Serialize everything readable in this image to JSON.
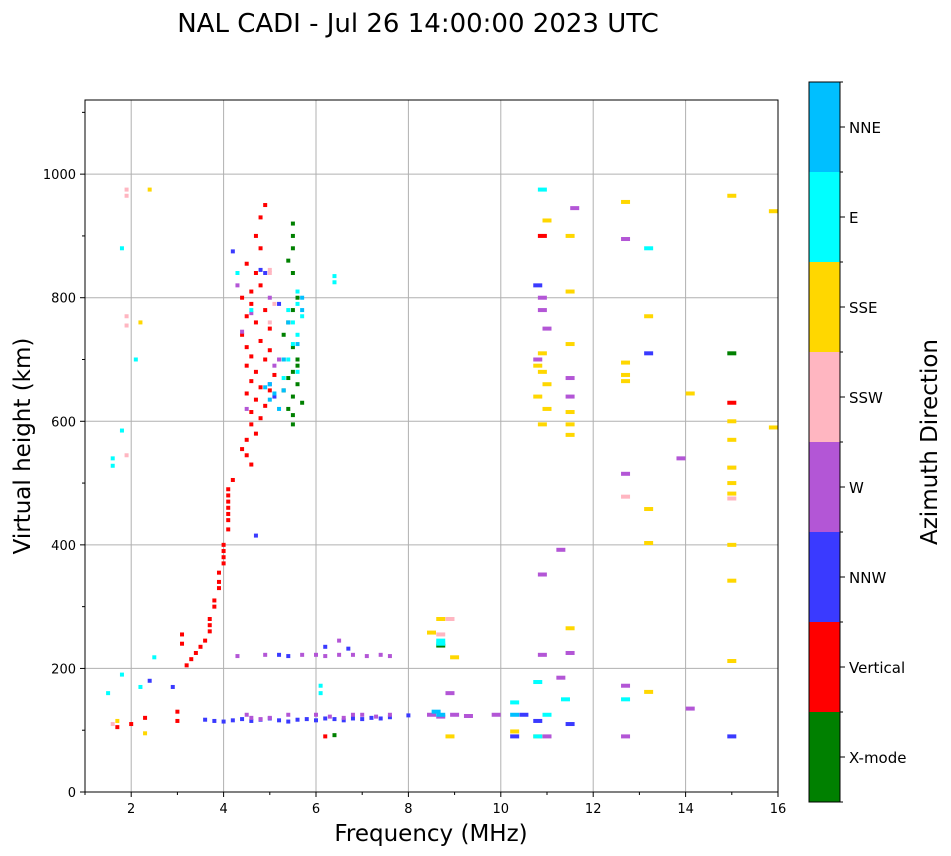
{
  "chart_data": {
    "type": "scatter",
    "title": "NAL CADI - Jul 26 14:00:00 2023 UTC",
    "xlabel": "Frequency (MHz)",
    "ylabel": "Virtual height (km)",
    "xlim": [
      1,
      16
    ],
    "ylim": [
      0,
      1120
    ],
    "xticks": [
      2,
      4,
      6,
      8,
      10,
      12,
      14,
      16
    ],
    "xtick_labels": [
      "2",
      "4",
      "6",
      "8",
      "10",
      "12",
      "14",
      "16"
    ],
    "yticks": [
      0,
      200,
      400,
      600,
      800,
      1000
    ],
    "ytick_labels": [
      "0",
      "200",
      "400",
      "600",
      "800",
      "1000"
    ],
    "grid": true,
    "colorbar": {
      "label": "Azimuth Direction",
      "categories": [
        "X-mode",
        "Vertical",
        "NNW",
        "W",
        "SSW",
        "SSE",
        "E",
        "NNE"
      ],
      "colors": [
        "#008000",
        "#ff0000",
        "#3a3aff",
        "#b356d6",
        "#ffb6c1",
        "#ffd700",
        "#00ffff",
        "#00bfff"
      ]
    },
    "series": [
      {
        "name": "X-mode",
        "points": [
          [
            5.5,
            920
          ],
          [
            5.5,
            900
          ],
          [
            5.5,
            880
          ],
          [
            5.4,
            860
          ],
          [
            5.5,
            840
          ],
          [
            5.6,
            800
          ],
          [
            5.5,
            780
          ],
          [
            5.4,
            760
          ],
          [
            5.3,
            740
          ],
          [
            5.5,
            720
          ],
          [
            5.6,
            700
          ],
          [
            5.5,
            680
          ],
          [
            5.4,
            670
          ],
          [
            5.6,
            660
          ],
          [
            5.3,
            650
          ],
          [
            5.5,
            640
          ],
          [
            5.7,
            630
          ],
          [
            5.4,
            620
          ],
          [
            5.5,
            610
          ],
          [
            5.5,
            595
          ],
          [
            5.6,
            690
          ],
          [
            5.3,
            700
          ],
          [
            6.4,
            92
          ],
          [
            15.0,
            710
          ],
          [
            8.7,
            237
          ]
        ]
      },
      {
        "name": "Vertical",
        "points": [
          [
            4.9,
            950
          ],
          [
            4.8,
            930
          ],
          [
            4.7,
            900
          ],
          [
            4.8,
            880
          ],
          [
            4.5,
            855
          ],
          [
            4.7,
            840
          ],
          [
            4.8,
            820
          ],
          [
            4.6,
            810
          ],
          [
            4.4,
            800
          ],
          [
            4.6,
            790
          ],
          [
            4.9,
            780
          ],
          [
            4.5,
            770
          ],
          [
            4.7,
            760
          ],
          [
            5.0,
            750
          ],
          [
            4.4,
            740
          ],
          [
            4.8,
            730
          ],
          [
            4.5,
            720
          ],
          [
            5.0,
            715
          ],
          [
            4.6,
            705
          ],
          [
            4.9,
            700
          ],
          [
            4.5,
            690
          ],
          [
            4.7,
            680
          ],
          [
            5.1,
            675
          ],
          [
            4.6,
            665
          ],
          [
            4.8,
            655
          ],
          [
            5.0,
            650
          ],
          [
            4.5,
            645
          ],
          [
            4.7,
            635
          ],
          [
            4.9,
            625
          ],
          [
            4.6,
            615
          ],
          [
            4.8,
            605
          ],
          [
            4.6,
            595
          ],
          [
            4.7,
            580
          ],
          [
            4.5,
            570
          ],
          [
            4.4,
            555
          ],
          [
            4.5,
            545
          ],
          [
            4.6,
            530
          ],
          [
            4.2,
            505
          ],
          [
            4.1,
            490
          ],
          [
            4.1,
            480
          ],
          [
            4.1,
            470
          ],
          [
            4.1,
            460
          ],
          [
            4.1,
            450
          ],
          [
            4.1,
            440
          ],
          [
            4.1,
            425
          ],
          [
            4.0,
            400
          ],
          [
            4.0,
            390
          ],
          [
            4.0,
            380
          ],
          [
            4.0,
            370
          ],
          [
            3.9,
            355
          ],
          [
            3.9,
            340
          ],
          [
            3.9,
            330
          ],
          [
            3.8,
            310
          ],
          [
            3.8,
            300
          ],
          [
            3.7,
            280
          ],
          [
            3.7,
            270
          ],
          [
            3.7,
            260
          ],
          [
            3.6,
            245
          ],
          [
            3.5,
            235
          ],
          [
            3.4,
            225
          ],
          [
            3.3,
            215
          ],
          [
            3.2,
            205
          ],
          [
            3.1,
            240
          ],
          [
            3.1,
            255
          ],
          [
            3.0,
            130
          ],
          [
            2.3,
            120
          ],
          [
            2.0,
            110
          ],
          [
            1.7,
            105
          ],
          [
            3.0,
            115
          ],
          [
            6.2,
            90
          ],
          [
            10.9,
            900
          ],
          [
            15.0,
            630
          ]
        ]
      },
      {
        "name": "NNW",
        "points": [
          [
            3.6,
            117
          ],
          [
            3.8,
            115
          ],
          [
            4.0,
            114
          ],
          [
            4.2,
            116
          ],
          [
            4.4,
            118
          ],
          [
            4.6,
            115
          ],
          [
            4.8,
            117
          ],
          [
            5.0,
            119
          ],
          [
            5.2,
            116
          ],
          [
            5.4,
            114
          ],
          [
            5.6,
            117
          ],
          [
            5.8,
            118
          ],
          [
            6.0,
            116
          ],
          [
            6.2,
            119
          ],
          [
            6.4,
            118
          ],
          [
            6.6,
            116
          ],
          [
            6.8,
            119
          ],
          [
            7.0,
            118
          ],
          [
            7.2,
            120
          ],
          [
            7.4,
            119
          ],
          [
            7.6,
            121
          ],
          [
            8.0,
            124
          ],
          [
            10.5,
            125
          ],
          [
            11.5,
            110
          ],
          [
            10.8,
            115
          ],
          [
            15.0,
            90
          ],
          [
            4.9,
            840
          ],
          [
            4.2,
            875
          ],
          [
            4.8,
            845
          ],
          [
            5.0,
            660
          ],
          [
            5.1,
            640
          ],
          [
            5.2,
            790
          ],
          [
            6.2,
            235
          ],
          [
            6.7,
            232
          ],
          [
            5.4,
            220
          ],
          [
            5.2,
            222
          ],
          [
            4.7,
            415
          ],
          [
            13.2,
            710
          ],
          [
            2.4,
            180
          ],
          [
            2.9,
            170
          ],
          [
            10.8,
            820
          ],
          [
            10.3,
            90
          ]
        ]
      },
      {
        "name": "W",
        "points": [
          [
            4.5,
            125
          ],
          [
            4.6,
            120
          ],
          [
            4.8,
            118
          ],
          [
            5.0,
            120
          ],
          [
            5.4,
            125
          ],
          [
            6.0,
            125
          ],
          [
            6.3,
            122
          ],
          [
            6.6,
            120
          ],
          [
            6.8,
            125
          ],
          [
            7.0,
            125
          ],
          [
            7.3,
            122
          ],
          [
            7.6,
            125
          ],
          [
            8.5,
            125
          ],
          [
            8.7,
            122
          ],
          [
            9.0,
            125
          ],
          [
            9.3,
            123
          ],
          [
            4.3,
            220
          ],
          [
            4.9,
            222
          ],
          [
            5.7,
            222
          ],
          [
            6.0,
            222
          ],
          [
            6.2,
            220
          ],
          [
            6.5,
            222
          ],
          [
            6.8,
            222
          ],
          [
            7.1,
            220
          ],
          [
            7.4,
            222
          ],
          [
            7.6,
            220
          ],
          [
            6.5,
            245
          ],
          [
            8.9,
            160
          ],
          [
            10.9,
            800
          ],
          [
            10.9,
            780
          ],
          [
            11.0,
            750
          ],
          [
            10.8,
            700
          ],
          [
            10.9,
            352
          ],
          [
            11.3,
            392
          ],
          [
            11.5,
            670
          ],
          [
            11.5,
            640
          ],
          [
            11.5,
            225
          ],
          [
            11.3,
            185
          ],
          [
            12.7,
            515
          ],
          [
            12.7,
            172
          ],
          [
            12.7,
            90
          ],
          [
            13.9,
            540
          ],
          [
            14.1,
            135
          ],
          [
            12.7,
            895
          ],
          [
            11.6,
            945
          ],
          [
            10.9,
            222
          ],
          [
            11.0,
            90
          ],
          [
            9.9,
            125
          ],
          [
            4.6,
            775
          ],
          [
            4.3,
            820
          ],
          [
            5.0,
            800
          ],
          [
            4.4,
            745
          ],
          [
            5.1,
            690
          ],
          [
            4.5,
            620
          ],
          [
            5.2,
            700
          ]
        ]
      },
      {
        "name": "SSW",
        "points": [
          [
            1.9,
            975
          ],
          [
            1.9,
            965
          ],
          [
            1.9,
            770
          ],
          [
            1.9,
            755
          ],
          [
            1.9,
            545
          ],
          [
            5.0,
            845
          ],
          [
            5.0,
            840
          ],
          [
            5.1,
            790
          ],
          [
            5.0,
            760
          ],
          [
            8.7,
            255
          ],
          [
            8.9,
            280
          ],
          [
            12.7,
            478
          ],
          [
            15.0,
            475
          ],
          [
            15.0,
            525
          ],
          [
            1.6,
            110
          ]
        ]
      },
      {
        "name": "SSE",
        "points": [
          [
            2.4,
            975
          ],
          [
            2.2,
            760
          ],
          [
            8.7,
            280
          ],
          [
            8.5,
            258
          ],
          [
            9.0,
            218
          ],
          [
            8.9,
            90
          ],
          [
            10.9,
            710
          ],
          [
            10.8,
            690
          ],
          [
            10.9,
            680
          ],
          [
            11.0,
            660
          ],
          [
            10.8,
            640
          ],
          [
            11.0,
            620
          ],
          [
            10.9,
            595
          ],
          [
            11.0,
            925
          ],
          [
            11.5,
            900
          ],
          [
            11.5,
            810
          ],
          [
            11.5,
            725
          ],
          [
            11.5,
            615
          ],
          [
            11.5,
            595
          ],
          [
            11.5,
            578
          ],
          [
            11.5,
            265
          ],
          [
            12.7,
            955
          ],
          [
            12.7,
            695
          ],
          [
            12.7,
            675
          ],
          [
            12.7,
            665
          ],
          [
            13.2,
            770
          ],
          [
            13.2,
            458
          ],
          [
            13.2,
            403
          ],
          [
            13.2,
            162
          ],
          [
            14.1,
            645
          ],
          [
            15.0,
            965
          ],
          [
            15.0,
            600
          ],
          [
            15.0,
            570
          ],
          [
            15.0,
            525
          ],
          [
            15.0,
            500
          ],
          [
            15.0,
            483
          ],
          [
            15.0,
            400
          ],
          [
            15.0,
            342
          ],
          [
            15.0,
            212
          ],
          [
            15.9,
            940
          ],
          [
            15.9,
            590
          ],
          [
            10.3,
            98
          ],
          [
            10.8,
            90
          ],
          [
            2.3,
            95
          ],
          [
            1.7,
            115
          ]
        ]
      },
      {
        "name": "E",
        "points": [
          [
            1.6,
            540
          ],
          [
            1.6,
            528
          ],
          [
            1.8,
            880
          ],
          [
            1.8,
            585
          ],
          [
            2.1,
            700
          ],
          [
            1.8,
            190
          ],
          [
            1.5,
            160
          ],
          [
            2.2,
            170
          ],
          [
            2.5,
            218
          ],
          [
            5.6,
            810
          ],
          [
            5.6,
            790
          ],
          [
            5.5,
            760
          ],
          [
            5.7,
            770
          ],
          [
            5.4,
            780
          ],
          [
            5.6,
            740
          ],
          [
            5.5,
            725
          ],
          [
            5.4,
            700
          ],
          [
            5.6,
            680
          ],
          [
            5.3,
            670
          ],
          [
            6.4,
            835
          ],
          [
            6.4,
            825
          ],
          [
            10.9,
            975
          ],
          [
            10.8,
            178
          ],
          [
            11.4,
            150
          ],
          [
            10.3,
            145
          ],
          [
            11.0,
            125
          ],
          [
            12.7,
            150
          ],
          [
            13.2,
            880
          ],
          [
            6.1,
            172
          ],
          [
            6.1,
            160
          ],
          [
            8.7,
            245
          ],
          [
            8.7,
            240
          ],
          [
            10.8,
            90
          ],
          [
            4.3,
            840
          ],
          [
            4.6,
            780
          ]
        ]
      },
      {
        "name": "NNE",
        "points": [
          [
            5.0,
            660
          ],
          [
            4.9,
            655
          ],
          [
            5.1,
            645
          ],
          [
            5.0,
            635
          ],
          [
            5.2,
            620
          ],
          [
            5.3,
            650
          ],
          [
            5.7,
            780
          ],
          [
            5.6,
            725
          ],
          [
            5.3,
            700
          ],
          [
            5.7,
            800
          ],
          [
            5.4,
            760
          ],
          [
            8.6,
            130
          ],
          [
            8.7,
            125
          ],
          [
            10.3,
            125
          ]
        ]
      }
    ]
  }
}
